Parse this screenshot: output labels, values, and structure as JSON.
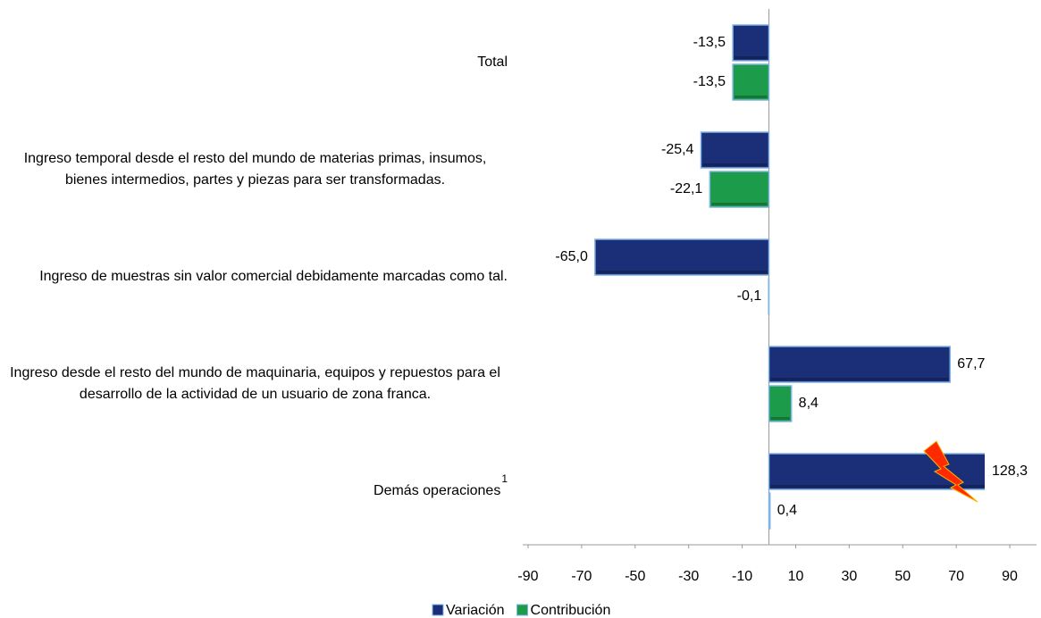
{
  "chart_data": {
    "type": "hbar",
    "categories": [
      "Total",
      "Ingreso temporal desde el resto del mundo de materias primas, insumos, bienes intermedios, partes y piezas para ser transformadas.",
      "Ingreso de muestras sin valor comercial debidamente marcadas como tal.",
      "Ingreso desde el resto del mundo de maquinaria, equipos y repuestos para el desarrollo de la actividad de un usuario de zona franca.",
      "Demás operaciones"
    ],
    "category_superscripts": [
      null,
      null,
      null,
      null,
      "1"
    ],
    "series": [
      {
        "name": "Variación",
        "color": "#1b2f78",
        "values": [
          -13.5,
          -25.4,
          -65.0,
          67.7,
          128.3
        ],
        "value_labels": [
          "-13,5",
          "-25,4",
          "-65,0",
          "67,7",
          "128,3"
        ]
      },
      {
        "name": "Contribución",
        "color": "#1c9c4a",
        "values": [
          -13.5,
          -22.1,
          -0.1,
          8.4,
          0.4
        ],
        "value_labels": [
          "-13,5",
          "-22,1",
          "-0,1",
          "8,4",
          "0,4"
        ]
      }
    ],
    "xlim": [
      -92,
      100
    ],
    "xticks": [
      -90,
      -70,
      -50,
      -30,
      -10,
      10,
      30,
      50,
      70,
      90
    ],
    "legend": "bottom"
  }
}
